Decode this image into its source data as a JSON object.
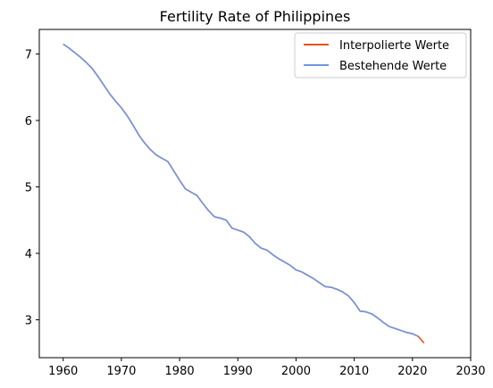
{
  "chart_data": {
    "type": "line",
    "title": "Fertility Rate of Philippines",
    "xlabel": "",
    "ylabel": "",
    "xlim": [
      1955.9,
      2030
    ],
    "ylim": [
      2.43,
      7.37
    ],
    "xticks": [
      1960,
      1970,
      1980,
      1990,
      2000,
      2010,
      2020,
      2030
    ],
    "yticks": [
      3,
      4,
      5,
      6,
      7
    ],
    "grid": false,
    "legend_position": "top-right",
    "series": [
      {
        "name": "Interpolierte Werte",
        "color": "#e8511e",
        "x": [
          1960,
          1961,
          1962,
          1963,
          1964,
          1965,
          1966,
          1967,
          1968,
          1969,
          1970,
          1971,
          1972,
          1973,
          1974,
          1975,
          1976,
          1977,
          1978,
          1979,
          1980,
          1981,
          1982,
          1983,
          1984,
          1985,
          1986,
          1987,
          1988,
          1989,
          1990,
          1991,
          1992,
          1993,
          1994,
          1995,
          1996,
          1997,
          1998,
          1999,
          2000,
          2001,
          2002,
          2003,
          2004,
          2005,
          2006,
          2007,
          2008,
          2009,
          2010,
          2011,
          2012,
          2013,
          2014,
          2015,
          2016,
          2017,
          2018,
          2019,
          2020,
          2021,
          2022
        ],
        "y": [
          7.15,
          7.09,
          7.02,
          6.95,
          6.87,
          6.78,
          6.66,
          6.53,
          6.4,
          6.29,
          6.19,
          6.07,
          5.93,
          5.78,
          5.66,
          5.56,
          5.48,
          5.43,
          5.38,
          5.24,
          5.1,
          4.97,
          4.92,
          4.87,
          4.75,
          4.64,
          4.55,
          4.53,
          4.5,
          4.38,
          4.35,
          4.32,
          4.25,
          4.15,
          4.08,
          4.05,
          3.98,
          3.92,
          3.87,
          3.82,
          3.75,
          3.72,
          3.67,
          3.62,
          3.56,
          3.5,
          3.49,
          3.46,
          3.42,
          3.36,
          3.26,
          3.13,
          3.12,
          3.09,
          3.03,
          2.96,
          2.9,
          2.87,
          2.84,
          2.81,
          2.79,
          2.75,
          2.65
        ]
      },
      {
        "name": "Bestehende Werte",
        "color": "#6f97e0",
        "x": [
          1960,
          1961,
          1962,
          1963,
          1964,
          1965,
          1966,
          1967,
          1968,
          1969,
          1970,
          1971,
          1972,
          1973,
          1974,
          1975,
          1976,
          1977,
          1978,
          1979,
          1980,
          1981,
          1982,
          1983,
          1984,
          1985,
          1986,
          1987,
          1988,
          1989,
          1990,
          1991,
          1992,
          1993,
          1994,
          1995,
          1996,
          1997,
          1998,
          1999,
          2000,
          2001,
          2002,
          2003,
          2004,
          2005,
          2006,
          2007,
          2008,
          2009,
          2010,
          2011,
          2012,
          2013,
          2014,
          2015,
          2016,
          2017,
          2018,
          2019,
          2020,
          2021
        ],
        "y": [
          7.15,
          7.09,
          7.02,
          6.95,
          6.87,
          6.78,
          6.66,
          6.53,
          6.4,
          6.29,
          6.19,
          6.07,
          5.93,
          5.78,
          5.66,
          5.56,
          5.48,
          5.43,
          5.38,
          5.24,
          5.1,
          4.97,
          4.92,
          4.87,
          4.75,
          4.64,
          4.55,
          4.53,
          4.5,
          4.38,
          4.35,
          4.32,
          4.25,
          4.15,
          4.08,
          4.05,
          3.98,
          3.92,
          3.87,
          3.82,
          3.75,
          3.72,
          3.67,
          3.62,
          3.56,
          3.5,
          3.49,
          3.46,
          3.42,
          3.36,
          3.26,
          3.13,
          3.12,
          3.09,
          3.03,
          2.96,
          2.9,
          2.87,
          2.84,
          2.81,
          2.79,
          2.75
        ]
      }
    ]
  }
}
